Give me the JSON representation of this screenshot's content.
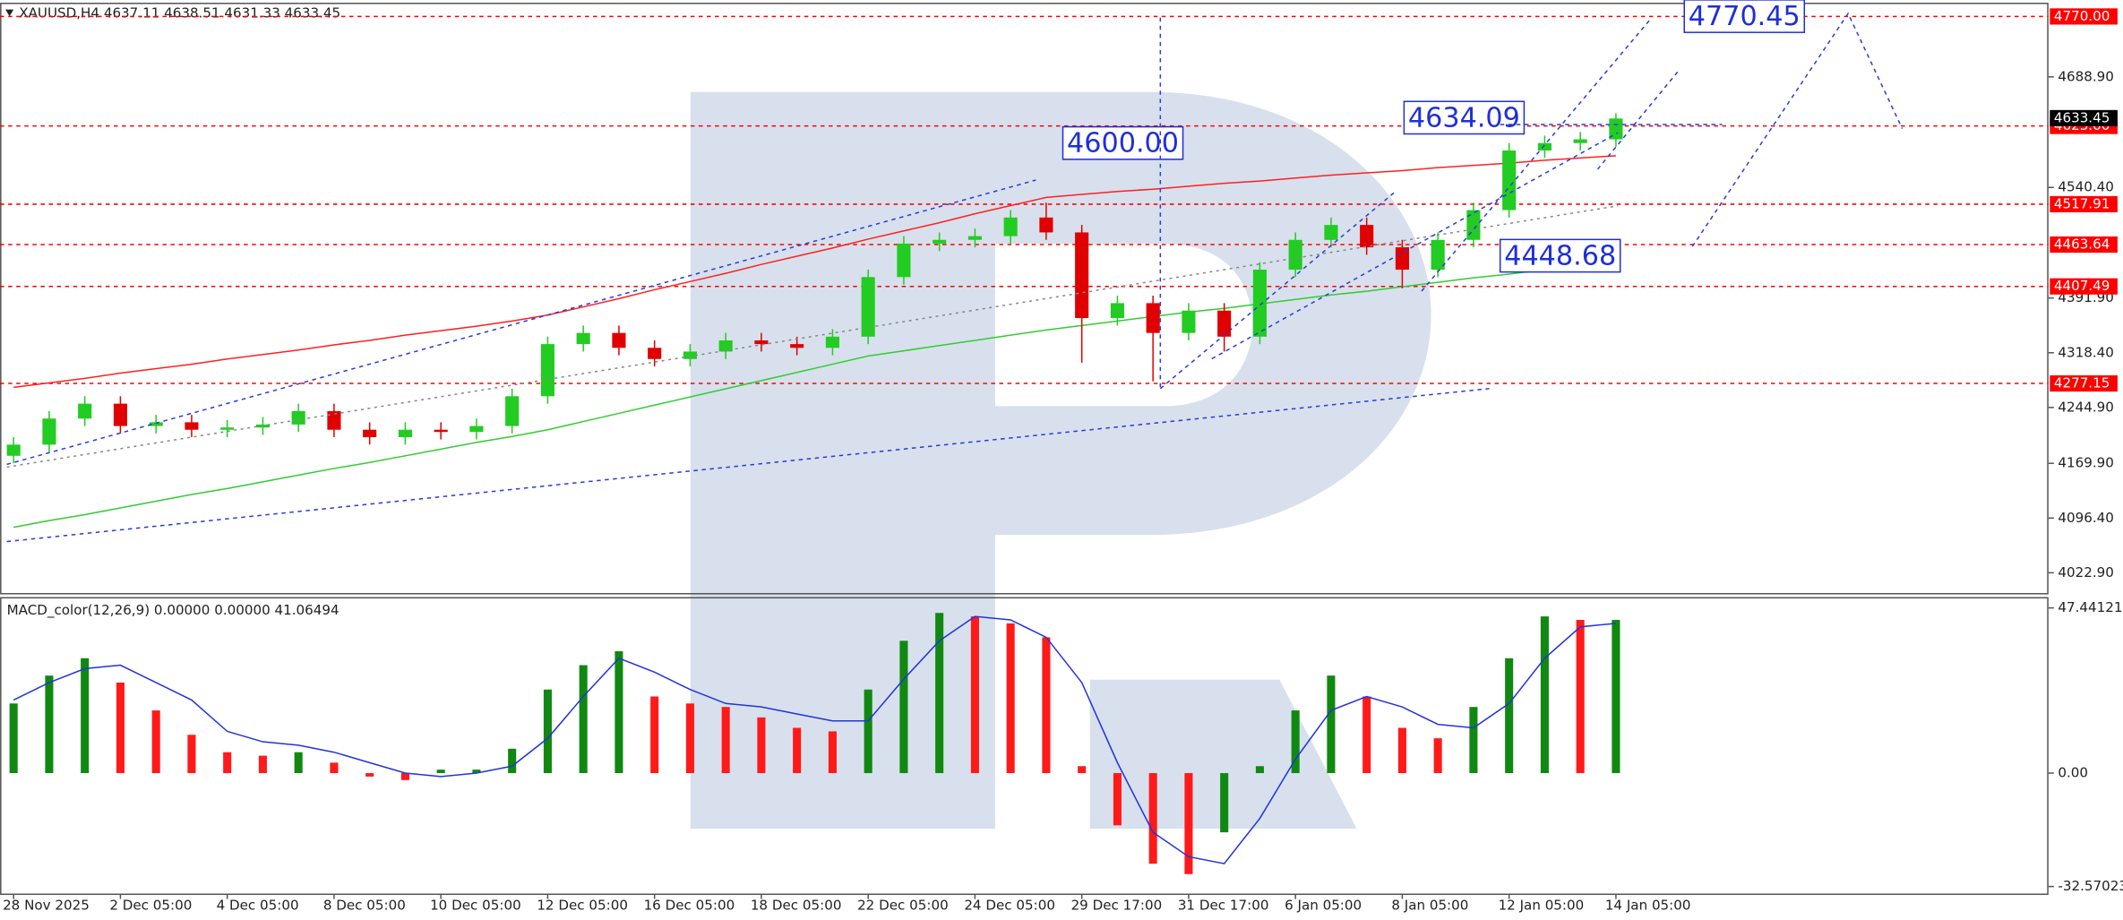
{
  "chart_data": [
    {
      "type": "candlestick",
      "title": "XAUUSD,H4  4637.11 4638.51 4631.33 4633.45",
      "categories": [
        "28 Nov 2025",
        null,
        null,
        "2 Dec 05:00",
        null,
        null,
        "4 Dec 05:00",
        null,
        null,
        "8 Dec 05:00",
        null,
        null,
        "10 Dec 05:00",
        null,
        null,
        "12 Dec 05:00",
        null,
        null,
        "16 Dec 05:00",
        null,
        null,
        "18 Dec 05:00",
        null,
        null,
        "22 Dec 05:00",
        null,
        null,
        "24 Dec 05:00",
        null,
        null,
        "29 Dec 17:00",
        null,
        null,
        "31 Dec 17:00",
        null,
        null,
        "6 Jan 05:00",
        null,
        null,
        "8 Jan 05:00",
        null,
        null,
        "12 Jan 05:00",
        null,
        null,
        "14 Jan 05:00"
      ],
      "open": [
        4180,
        4195,
        4230,
        4250,
        4220,
        4225,
        4215,
        4218,
        4222,
        4240,
        4215,
        4205,
        4215,
        4212,
        4220,
        4260,
        4330,
        4345,
        4325,
        4310,
        4320,
        4335,
        4330,
        4325,
        4340,
        4420,
        4465,
        4470,
        4475,
        4500,
        4480,
        4365,
        4385,
        4345,
        4375,
        4340,
        4430,
        4470,
        4490,
        4460,
        4430,
        4470,
        4510,
        4590,
        4600,
        4605
      ],
      "high": [
        4205,
        4240,
        4260,
        4260,
        4235,
        4235,
        4228,
        4232,
        4250,
        4250,
        4225,
        4225,
        4225,
        4230,
        4270,
        4340,
        4355,
        4355,
        4335,
        4330,
        4345,
        4345,
        4340,
        4350,
        4430,
        4475,
        4480,
        4485,
        4510,
        4520,
        4490,
        4395,
        4395,
        4385,
        4385,
        4440,
        4480,
        4500,
        4500,
        4470,
        4480,
        4520,
        4600,
        4610,
        4615,
        4640
      ],
      "low": [
        4170,
        4185,
        4220,
        4210,
        4210,
        4205,
        4205,
        4208,
        4212,
        4205,
        4195,
        4195,
        4202,
        4202,
        4210,
        4250,
        4320,
        4315,
        4300,
        4300,
        4310,
        4320,
        4315,
        4315,
        4330,
        4410,
        4455,
        4460,
        4465,
        4470,
        4305,
        4355,
        4280,
        4335,
        4320,
        4330,
        4420,
        4460,
        4450,
        4405,
        4420,
        4460,
        4500,
        4580,
        4590,
        4595
      ],
      "close": [
        4195,
        4230,
        4250,
        4220,
        4225,
        4215,
        4218,
        4222,
        4240,
        4215,
        4205,
        4215,
        4212,
        4220,
        4260,
        4330,
        4345,
        4325,
        4310,
        4320,
        4335,
        4330,
        4325,
        4340,
        4420,
        4465,
        4470,
        4475,
        4500,
        4480,
        4365,
        4385,
        4345,
        4375,
        4340,
        4430,
        4470,
        4490,
        4460,
        4430,
        4470,
        4510,
        4590,
        4600,
        4605,
        4633
      ],
      "up_color": "#22cc22",
      "down_color": "#e00000",
      "series": [
        {
          "color": "#ff2020",
          "values": [
            4272,
            4278,
            4284,
            4291,
            4297,
            4303,
            4310,
            4316,
            4322,
            4329,
            4335,
            4342,
            4348,
            4354,
            4361,
            4369,
            4380,
            4391,
            4403,
            4414,
            4425,
            4437,
            4448,
            4459,
            4471,
            4482,
            4493,
            4505,
            4516,
            4527,
            4531,
            4535,
            4538,
            4542,
            4546,
            4549,
            4553,
            4557,
            4560,
            4563,
            4567,
            4570,
            4573,
            4577,
            4580,
            4583
          ]
        },
        {
          "color": "#33cc33",
          "values": [
            4084,
            4093,
            4101,
            4110,
            4119,
            4128,
            4136,
            4145,
            4154,
            4163,
            4171,
            4180,
            4189,
            4198,
            4206,
            4215,
            4226,
            4237,
            4248,
            4259,
            4270,
            4281,
            4292,
            4303,
            4314,
            4321,
            4328,
            4335,
            4342,
            4349,
            4355,
            4361,
            4367,
            4373,
            4378,
            4384,
            4390,
            4396,
            4401,
            4407,
            4413,
            4419,
            4424,
            4430,
            4436,
            4442
          ]
        }
      ],
      "ylim": [
        3995.7,
        4788.5
      ],
      "yticks": [
        {
          "value": 4688.9,
          "label": "4688.90"
        },
        {
          "value": 4540.4,
          "label": "4540.40"
        },
        {
          "value": 4391.9,
          "label": "4391.90"
        },
        {
          "value": 4318.4,
          "label": "4318.40"
        },
        {
          "value": 4244.9,
          "label": "4244.90"
        },
        {
          "value": 4169.9,
          "label": "4169.90"
        },
        {
          "value": 4096.4,
          "label": "4096.40"
        },
        {
          "value": 4022.9,
          "label": "4022.90"
        }
      ],
      "grid": false,
      "level_color": "#ff0000",
      "levels": [
        {
          "value": 4770,
          "label": "4770.00"
        },
        {
          "value": 4623,
          "label": "4623.00"
        },
        {
          "value": 4517.91,
          "label": "4517.91"
        },
        {
          "value": 4463.64,
          "label": "4463.64"
        },
        {
          "value": 4407.49,
          "label": "4407.49"
        },
        {
          "value": 4277.15,
          "label": "4277.15"
        }
      ],
      "last_price": {
        "value": 4633.45,
        "label": "4633.45"
      },
      "annotation_color": "#1f2fd6",
      "annotations": [
        {
          "value": 4600,
          "label": "4600.00"
        },
        {
          "value": 4634.09,
          "label": "4634.09"
        },
        {
          "value": 4448.68,
          "label": "4448.68"
        },
        {
          "value": 4770.45,
          "label": "4770.45"
        }
      ]
    },
    {
      "type": "bar",
      "title": "MACD_color(12,26,9) 0.00000 0.00000 41.06494",
      "values": [
        20,
        28,
        33,
        26,
        18,
        11,
        6,
        5,
        6,
        3,
        -1,
        -2,
        1,
        1,
        7,
        24,
        31,
        35,
        22,
        20,
        19,
        16,
        13,
        12,
        24,
        38,
        46,
        45,
        43,
        39,
        2,
        -15,
        -26,
        -29,
        -17,
        2,
        18,
        28,
        22,
        13,
        10,
        19,
        33,
        45,
        44,
        44
      ],
      "up_color": "#118811",
      "down_color": "#ff1a1a",
      "signal": {
        "color": "#2233dd",
        "values": [
          21,
          26,
          30,
          31,
          26,
          21,
          12,
          9,
          8,
          6,
          3,
          0,
          -1,
          0,
          2,
          10,
          22,
          33,
          29,
          24,
          20,
          19,
          17,
          15,
          15,
          27,
          38,
          45,
          44,
          39,
          26,
          3,
          -17,
          -24,
          -26,
          -13,
          4,
          18,
          22,
          19,
          14,
          13,
          20,
          33,
          42,
          43
        ]
      },
      "ylim": [
        -34.6,
        50.55
      ],
      "yticks": [
        47.44121,
        {
          "value": 0,
          "label": "0.00"
        },
        -32.57023
      ]
    }
  ]
}
